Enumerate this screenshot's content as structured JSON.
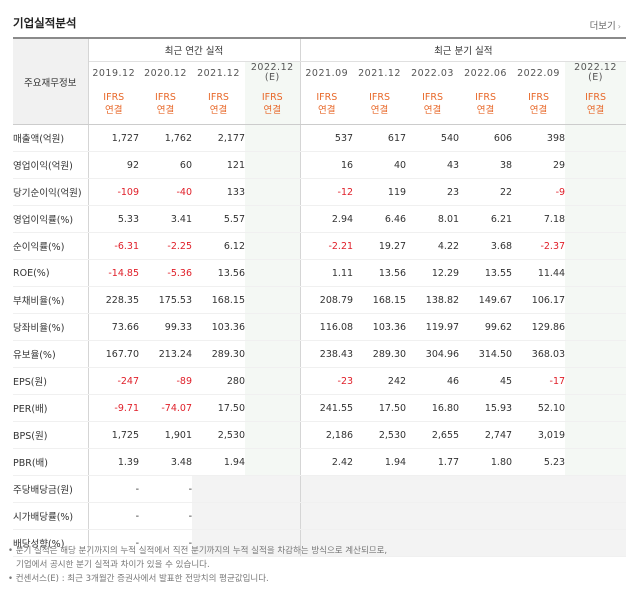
{
  "header": {
    "title": "기업실적분석",
    "more_label": "더보기",
    "more_arrow": "›"
  },
  "table": {
    "corner_label": "주요재무정보",
    "annual_group_label": "최근 연간 실적",
    "quarter_group_label": "최근 분기 실적",
    "periods": [
      {
        "label": "2019.12",
        "estimate": false
      },
      {
        "label": "2020.12",
        "estimate": false
      },
      {
        "label": "2021.12",
        "estimate": false
      },
      {
        "label": "2022.12",
        "sub": "(E)",
        "estimate": true
      },
      {
        "label": "2021.09",
        "estimate": false
      },
      {
        "label": "2021.12",
        "estimate": false
      },
      {
        "label": "2022.03",
        "estimate": false
      },
      {
        "label": "2022.06",
        "estimate": false
      },
      {
        "label": "2022.09",
        "estimate": false
      },
      {
        "label": "2022.12",
        "sub": "(E)",
        "estimate": true
      }
    ],
    "gaap_line1": "IFRS",
    "gaap_line2": "연결",
    "rows": [
      {
        "label": "매출액(억원)",
        "values": [
          "1,727",
          "1,762",
          "2,177",
          "",
          "537",
          "617",
          "540",
          "606",
          "398",
          ""
        ]
      },
      {
        "label": "영업이익(억원)",
        "values": [
          "92",
          "60",
          "121",
          "",
          "16",
          "40",
          "43",
          "38",
          "29",
          ""
        ]
      },
      {
        "label": "당기순이익(억원)",
        "values": [
          "-109",
          "-40",
          "133",
          "",
          "-12",
          "119",
          "23",
          "22",
          "-9",
          ""
        ]
      },
      {
        "label": "영업이익률(%)",
        "values": [
          "5.33",
          "3.41",
          "5.57",
          "",
          "2.94",
          "6.46",
          "8.01",
          "6.21",
          "7.18",
          ""
        ]
      },
      {
        "label": "순이익률(%)",
        "values": [
          "-6.31",
          "-2.25",
          "6.12",
          "",
          "-2.21",
          "19.27",
          "4.22",
          "3.68",
          "-2.37",
          ""
        ]
      },
      {
        "label": "ROE(%)",
        "values": [
          "-14.85",
          "-5.36",
          "13.56",
          "",
          "1.11",
          "13.56",
          "12.29",
          "13.55",
          "11.44",
          ""
        ]
      },
      {
        "label": "부채비율(%)",
        "values": [
          "228.35",
          "175.53",
          "168.15",
          "",
          "208.79",
          "168.15",
          "138.82",
          "149.67",
          "106.17",
          ""
        ]
      },
      {
        "label": "당좌비율(%)",
        "values": [
          "73.66",
          "99.33",
          "103.36",
          "",
          "116.08",
          "103.36",
          "119.97",
          "99.62",
          "129.86",
          ""
        ]
      },
      {
        "label": "유보율(%)",
        "values": [
          "167.70",
          "213.24",
          "289.30",
          "",
          "238.43",
          "289.30",
          "304.96",
          "314.50",
          "368.03",
          ""
        ]
      },
      {
        "label": "EPS(원)",
        "values": [
          "-247",
          "-89",
          "280",
          "",
          "-23",
          "242",
          "46",
          "45",
          "-17",
          ""
        ]
      },
      {
        "label": "PER(배)",
        "values": [
          "-9.71",
          "-74.07",
          "17.50",
          "",
          "241.55",
          "17.50",
          "16.80",
          "15.93",
          "52.10",
          ""
        ]
      },
      {
        "label": "BPS(원)",
        "values": [
          "1,725",
          "1,901",
          "2,530",
          "",
          "2,186",
          "2,530",
          "2,655",
          "2,747",
          "3,019",
          ""
        ]
      },
      {
        "label": "PBR(배)",
        "values": [
          "1.39",
          "3.48",
          "1.94",
          "",
          "2.42",
          "1.94",
          "1.77",
          "1.80",
          "5.23",
          ""
        ]
      },
      {
        "label": "주당배당금(원)",
        "values": [
          "-",
          "-",
          "",
          "",
          "",
          "",
          "",
          "",
          "",
          ""
        ],
        "blank_from": 2
      },
      {
        "label": "시가배당률(%)",
        "values": [
          "-",
          "-",
          "",
          "",
          "",
          "",
          "",
          "",
          "",
          ""
        ],
        "blank_from": 2
      },
      {
        "label": "배당성향(%)",
        "values": [
          "-",
          "-",
          "",
          "",
          "",
          "",
          "",
          "",
          "",
          ""
        ],
        "blank_from": 2
      }
    ],
    "group_separators_before": [
      3,
      6,
      9,
      12,
      13
    ]
  },
  "notes": {
    "note1_line1": "• 분기 실적은 해당 분기까지의 누적 실적에서 직전 분기까지의 누적 실적을 차감하는 방식으로 계산되므로,",
    "note1_line2": "기업에서 공시한 분기 실적과 차이가 있을 수 있습니다.",
    "note2": "• 컨센서스(E) : 최근 3개월간 증권사에서 발표한 전망치의 평균값입니다."
  }
}
